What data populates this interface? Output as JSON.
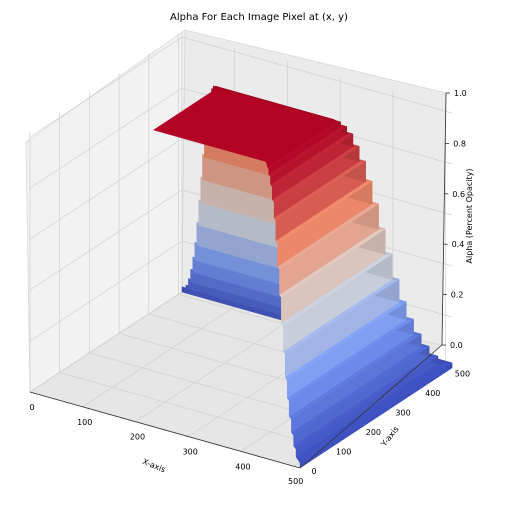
{
  "chart_data": {
    "type": "surface",
    "title": "Alpha For Each Image Pixel at (x, y)",
    "xlabel": "X-axis",
    "ylabel": "Y-axis",
    "zlabel": "Alpha (Percent Opacity)",
    "xlim": [
      0,
      512
    ],
    "ylim": [
      0,
      512
    ],
    "zlim": [
      0.0,
      1.0
    ],
    "x_ticks": [
      0,
      100,
      200,
      300,
      400,
      500
    ],
    "y_ticks": [
      0,
      100,
      200,
      300,
      400,
      500
    ],
    "z_ticks": [
      "0.0",
      "0.2",
      "0.4",
      "0.6",
      "0.8",
      "1.0"
    ],
    "colormap": "coolwarm",
    "grid": true,
    "plateau_levels": [
      0.02,
      0.05,
      0.09,
      0.14,
      0.2,
      0.27,
      0.36,
      0.46,
      0.56,
      0.66,
      0.75,
      0.83,
      0.89,
      0.94,
      0.97,
      0.99,
      1.0
    ]
  }
}
